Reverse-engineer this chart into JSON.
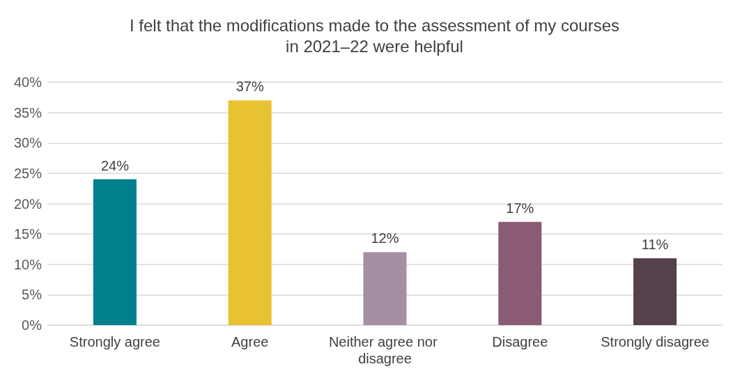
{
  "chart_data": {
    "type": "bar",
    "title": "I felt that the modifications made to the assessment of my courses\nin 2021–22 were helpful",
    "categories": [
      "Strongly agree",
      "Agree",
      "Neither agree nor disagree",
      "Disagree",
      "Strongly disagree"
    ],
    "values": [
      24,
      37,
      12,
      17,
      11
    ],
    "colors": [
      "#007f8c",
      "#e9c232",
      "#a68ea5",
      "#8a5b73",
      "#54414c"
    ],
    "value_labels": [
      "24%",
      "37%",
      "12%",
      "17%",
      "11%"
    ],
    "ylim": [
      0,
      40
    ],
    "yticks": [
      {
        "value": 0,
        "label": "0%"
      },
      {
        "value": 5,
        "label": "5%"
      },
      {
        "value": 10,
        "label": "10%"
      },
      {
        "value": 15,
        "label": "15%"
      },
      {
        "value": 20,
        "label": "20%"
      },
      {
        "value": 25,
        "label": "25%"
      },
      {
        "value": 30,
        "label": "30%"
      },
      {
        "value": 35,
        "label": "35%"
      },
      {
        "value": 40,
        "label": "40%"
      }
    ],
    "grid": "y"
  }
}
